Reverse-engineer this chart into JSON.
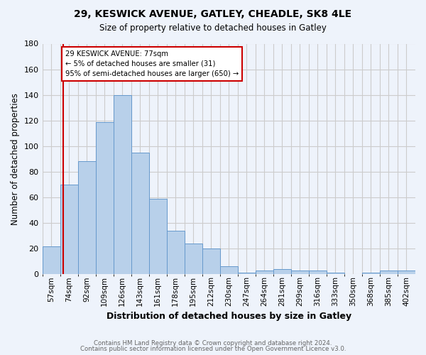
{
  "title1": "29, KESWICK AVENUE, GATLEY, CHEADLE, SK8 4LE",
  "title2": "Size of property relative to detached houses in Gatley",
  "xlabel": "Distribution of detached houses by size in Gatley",
  "ylabel": "Number of detached properties",
  "footer1": "Contains HM Land Registry data © Crown copyright and database right 2024.",
  "footer2": "Contains public sector information licensed under the Open Government Licence v3.0.",
  "bin_labels": [
    "57sqm",
    "74sqm",
    "92sqm",
    "109sqm",
    "126sqm",
    "143sqm",
    "161sqm",
    "178sqm",
    "195sqm",
    "212sqm",
    "230sqm",
    "247sqm",
    "264sqm",
    "281sqm",
    "299sqm",
    "316sqm",
    "333sqm",
    "350sqm",
    "368sqm",
    "385sqm",
    "402sqm"
  ],
  "bin_values": [
    22,
    70,
    88,
    119,
    140,
    95,
    59,
    34,
    24,
    20,
    6,
    1,
    3,
    4,
    3,
    3,
    1,
    0,
    1,
    3,
    3
  ],
  "bar_color": "#b8d0ea",
  "bar_edge_color": "#6699cc",
  "grid_color": "#cccccc",
  "bg_color": "#eef3fb",
  "vline_color": "#cc0000",
  "annotation_text": "29 KESWICK AVENUE: 77sqm\n← 5% of detached houses are smaller (31)\n95% of semi-detached houses are larger (650) →",
  "annotation_box_color": "#ffffff",
  "annotation_box_edge": "#cc0000",
  "ylim": [
    0,
    180
  ],
  "yticks": [
    0,
    20,
    40,
    60,
    80,
    100,
    120,
    140,
    160,
    180
  ]
}
